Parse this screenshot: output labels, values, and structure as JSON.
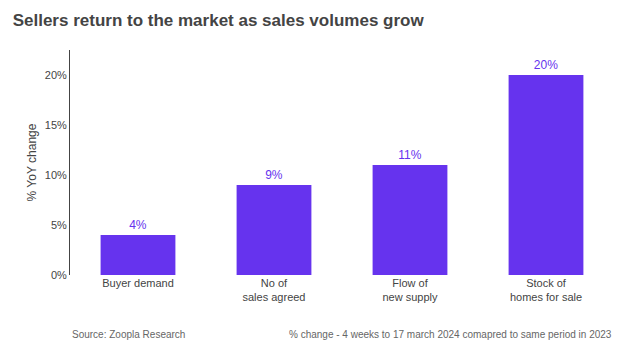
{
  "chart_data": {
    "type": "bar",
    "title": "Sellers return to the market as sales volumes grow",
    "categories": [
      "Buyer demand",
      "No of\nsales agreed",
      "Flow of\nnew supply",
      "Stock of\nhomes for sale"
    ],
    "values": [
      4,
      9,
      11,
      20
    ],
    "value_labels": [
      "4%",
      "9%",
      "11%",
      "20%"
    ],
    "data_labels": true,
    "color": "#6633ee",
    "ylabel": "% YoY change",
    "ylim": [
      0,
      22.5
    ],
    "yticks": [
      {
        "value": 0,
        "label": "0%"
      },
      {
        "value": 5,
        "label": "5%"
      },
      {
        "value": 10,
        "label": "10%"
      },
      {
        "value": 15,
        "label": "15%"
      },
      {
        "value": 20,
        "label": "20%"
      }
    ],
    "grid": false,
    "annotations": [
      "Source: Zoopla Research",
      "% change - 4 weeks to 17 march 2024 comapred to same period in 2023"
    ]
  }
}
